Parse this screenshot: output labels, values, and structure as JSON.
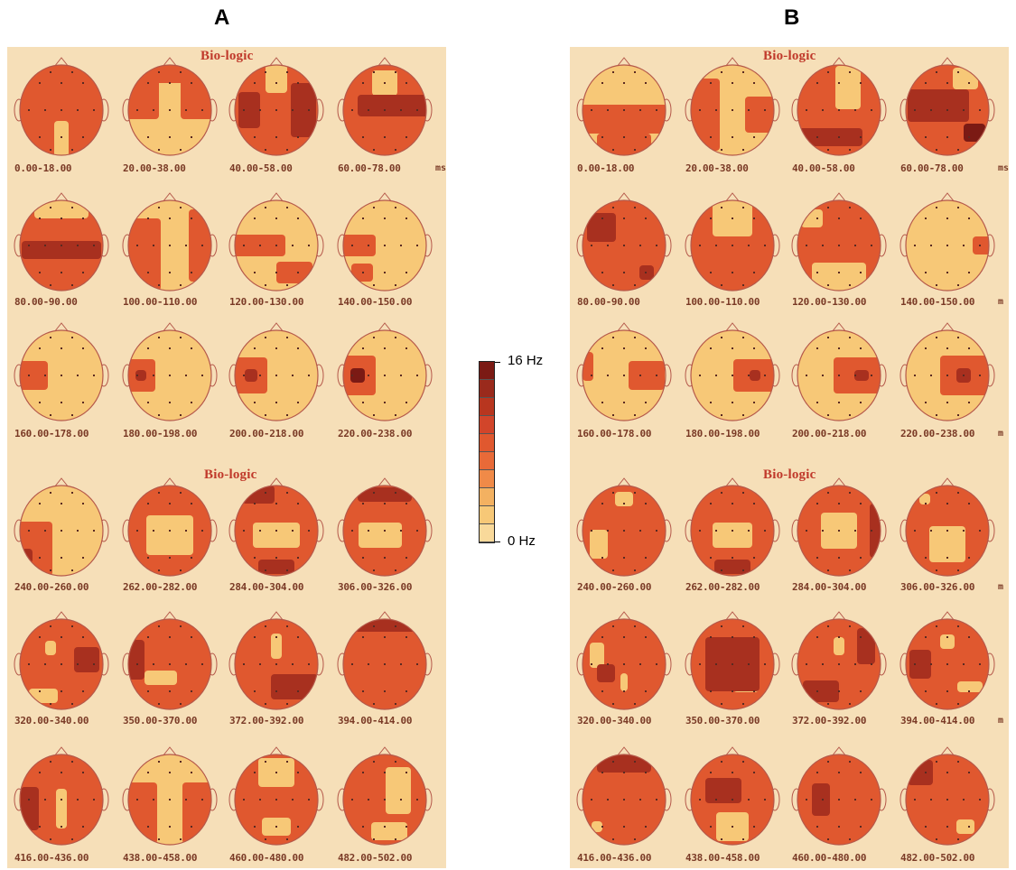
{
  "panels": [
    {
      "letter": "A",
      "brand_top": "Bio-logic",
      "brand_mid": "Bio-logic",
      "row_units": [
        "ms",
        "",
        "",
        "",
        "",
        ""
      ],
      "labels": [
        [
          "0.00-18.00",
          "20.00-38.00",
          "40.00-58.00",
          "60.00-78.00"
        ],
        [
          "80.00-90.00",
          "100.00-110.00",
          "120.00-130.00",
          "140.00-150.00"
        ],
        [
          "160.00-178.00",
          "180.00-198.00",
          "200.00-218.00",
          "220.00-238.00"
        ],
        [
          "240.00-260.00",
          "262.00-282.00",
          "284.00-304.00",
          "306.00-326.00"
        ],
        [
          "320.00-340.00",
          "350.00-370.00",
          "372.00-392.00",
          "394.00-414.00"
        ],
        [
          "416.00-436.00",
          "438.00-458.00",
          "460.00-480.00",
          "482.00-502.00"
        ]
      ]
    },
    {
      "letter": "B",
      "brand_top": "Bio-logic",
      "brand_mid": "Bio-logic",
      "row_units": [
        "ms",
        "m",
        "m",
        "m",
        "m",
        ""
      ],
      "labels": [
        [
          "0.00-18.00",
          "20.00-38.00",
          "40.00-58.00",
          "60.00-78.00"
        ],
        [
          "80.00-90.00",
          "100.00-110.00",
          "120.00-130.00",
          "140.00-150.00"
        ],
        [
          "160.00-178.00",
          "180.00-198.00",
          "200.00-218.00",
          "220.00-238.00"
        ],
        [
          "240.00-260.00",
          "262.00-282.00",
          "284.00-304.00",
          "306.00-326.00"
        ],
        [
          "320.00-340.00",
          "350.00-370.00",
          "372.00-392.00",
          "394.00-414.00"
        ],
        [
          "416.00-436.00",
          "438.00-458.00",
          "460.00-480.00",
          "482.00-502.00"
        ]
      ]
    }
  ],
  "colorbar": {
    "max_label": "16 Hz",
    "min_label": "0 Hz",
    "colors": [
      "#7b1a14",
      "#9a2a1c",
      "#b8361f",
      "#d2452a",
      "#e0582f",
      "#e86a38",
      "#f08a48",
      "#f3b161",
      "#f7c877",
      "#f9d99a"
    ]
  },
  "palette": {
    "sheet": "#f6dfb8",
    "light": "#f7c877",
    "mid": "#e0582f",
    "dark": "#a8301f",
    "darkest": "#7b1a14",
    "outline": "#b5584a",
    "label_color": "#7a3a26"
  }
}
